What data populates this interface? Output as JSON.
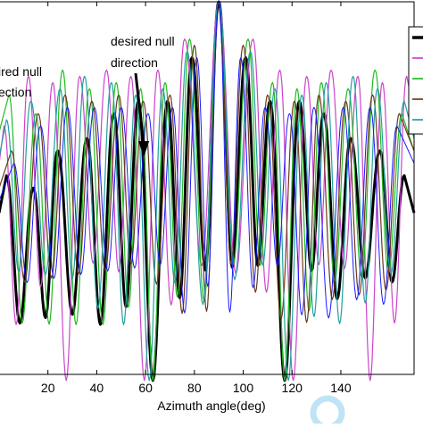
{
  "chart_data": {
    "type": "line",
    "xlabel": "Azimuth angle(deg)",
    "ylabel": "",
    "title": "",
    "xlim": [
      0,
      170
    ],
    "ylim": [
      -60,
      0
    ],
    "x_ticks": [
      20,
      40,
      60,
      80,
      100,
      120,
      140
    ],
    "grid": false,
    "legend_position": "top-right",
    "main_lobe_deg": 90,
    "null_dips_deg": [
      26,
      60,
      120,
      154
    ],
    "annotations": [
      {
        "text_lines": [
          "desired null",
          "direction"
        ],
        "target_x": 60,
        "target_y": -30
      },
      {
        "text_lines": [
          "ired null",
          "ection"
        ],
        "target_x": 26,
        "target_y": -30
      }
    ],
    "series": [
      {
        "color": "#000000",
        "width": 3.0,
        "peak_x": [
          3,
          14,
          24,
          36,
          47,
          57,
          69,
          79,
          90,
          101,
          111,
          123,
          133,
          144,
          156,
          166
        ],
        "peak_y": [
          -28,
          -30,
          -24,
          -22,
          -18,
          -16,
          -16,
          -9,
          0,
          -9,
          -16,
          -16,
          -18,
          -22,
          -24,
          -28
        ]
      },
      {
        "color": "#cc44cc",
        "width": 1.2,
        "peak_x": [
          2,
          12,
          22,
          33,
          44,
          54,
          65,
          76,
          90,
          104,
          115,
          126,
          136,
          147,
          157,
          167
        ],
        "peak_y": [
          -20,
          -12,
          -13,
          -12,
          -11,
          -12,
          -11,
          -6,
          0,
          -6,
          -11,
          -12,
          -11,
          -12,
          -13,
          -12
        ]
      },
      {
        "color": "#22bb22",
        "width": 1.2,
        "peak_x": [
          4,
          15,
          26,
          37,
          48,
          58,
          68,
          78,
          90,
          102,
          112,
          122,
          132,
          143,
          154,
          165
        ],
        "peak_y": [
          -15,
          -18,
          -11,
          -14,
          -13,
          -14,
          -13,
          -6,
          0,
          -6,
          -13,
          -14,
          -13,
          -14,
          -11,
          -18
        ]
      },
      {
        "color": "#6b3a1e",
        "width": 1.2,
        "peak_x": [
          5,
          16,
          27,
          38,
          49,
          59,
          70,
          80,
          90,
          100,
          110,
          121,
          131,
          142,
          153,
          164
        ],
        "peak_y": [
          -24,
          -18,
          -15,
          -16,
          -15,
          -16,
          -15,
          -7,
          0,
          -7,
          -15,
          -16,
          -15,
          -16,
          -15,
          -18
        ]
      },
      {
        "color": "#22a0a0",
        "width": 1.2,
        "peak_x": [
          3,
          13,
          25,
          35,
          46,
          56,
          67,
          77,
          90,
          103,
          113,
          124,
          134,
          145,
          155,
          166
        ],
        "peak_y": [
          -19,
          -16,
          -14,
          -12,
          -13,
          -15,
          -14,
          -8,
          0,
          -8,
          -14,
          -15,
          -13,
          -12,
          -14,
          -16
        ]
      },
      {
        "color": "#1a1aff",
        "width": 1.0,
        "peak_x": [
          6,
          17,
          28,
          39,
          50,
          61,
          71,
          81,
          90,
          99,
          109,
          119,
          129,
          141,
          152,
          163
        ],
        "peak_y": [
          -26,
          -20,
          -17,
          -17,
          -17,
          -18,
          -17,
          -9,
          0,
          -9,
          -17,
          -18,
          -17,
          -17,
          -17,
          -20
        ]
      }
    ]
  }
}
